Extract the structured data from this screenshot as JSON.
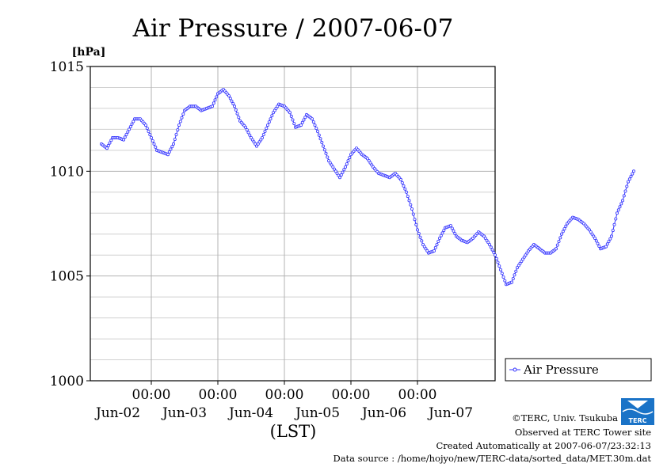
{
  "chart_data": {
    "type": "line",
    "title": "Air Pressure / 2007-06-07",
    "ylabel": "[hPa]",
    "xlabel": "(LST)",
    "ylim": [
      1000,
      1015
    ],
    "yticks": [
      "1015",
      "1010",
      "1005",
      "1000"
    ],
    "xtick_time": "00:00",
    "categories": [
      "Jun-02",
      "Jun-03",
      "Jun-04",
      "Jun-05",
      "Jun-06",
      "Jun-07"
    ],
    "x_range_hours": [
      0,
      144
    ],
    "grid": true,
    "legend": "right",
    "series": [
      {
        "name": "Air Pressure",
        "color": "#3333ff",
        "points": [
          [
            0,
            1011.3
          ],
          [
            2,
            1011.1
          ],
          [
            4,
            1011.6
          ],
          [
            6,
            1011.6
          ],
          [
            8,
            1011.5
          ],
          [
            10,
            1012.0
          ],
          [
            12,
            1012.5
          ],
          [
            14,
            1012.5
          ],
          [
            16,
            1012.2
          ],
          [
            18,
            1011.6
          ],
          [
            20,
            1011.0
          ],
          [
            22,
            1010.9
          ],
          [
            24,
            1010.8
          ],
          [
            26,
            1011.3
          ],
          [
            28,
            1012.2
          ],
          [
            30,
            1012.9
          ],
          [
            32,
            1013.1
          ],
          [
            34,
            1013.1
          ],
          [
            36,
            1012.9
          ],
          [
            38,
            1013.0
          ],
          [
            40,
            1013.1
          ],
          [
            42,
            1013.7
          ],
          [
            44,
            1013.9
          ],
          [
            46,
            1013.6
          ],
          [
            48,
            1013.1
          ],
          [
            50,
            1012.4
          ],
          [
            52,
            1012.1
          ],
          [
            54,
            1011.6
          ],
          [
            56,
            1011.2
          ],
          [
            58,
            1011.6
          ],
          [
            60,
            1012.2
          ],
          [
            62,
            1012.8
          ],
          [
            64,
            1013.2
          ],
          [
            66,
            1013.1
          ],
          [
            68,
            1012.8
          ],
          [
            70,
            1012.1
          ],
          [
            72,
            1012.2
          ],
          [
            74,
            1012.7
          ],
          [
            76,
            1012.5
          ],
          [
            78,
            1011.9
          ],
          [
            80,
            1011.2
          ],
          [
            82,
            1010.5
          ],
          [
            84,
            1010.1
          ],
          [
            86,
            1009.7
          ],
          [
            88,
            1010.2
          ],
          [
            90,
            1010.8
          ],
          [
            92,
            1011.1
          ],
          [
            94,
            1010.8
          ],
          [
            96,
            1010.6
          ],
          [
            98,
            1010.2
          ],
          [
            100,
            1009.9
          ],
          [
            102,
            1009.8
          ],
          [
            104,
            1009.7
          ],
          [
            106,
            1009.9
          ],
          [
            108,
            1009.6
          ],
          [
            110,
            1009.0
          ],
          [
            112,
            1008.2
          ],
          [
            114,
            1007.2
          ],
          [
            116,
            1006.5
          ],
          [
            118,
            1006.1
          ],
          [
            120,
            1006.2
          ],
          [
            122,
            1006.8
          ],
          [
            124,
            1007.3
          ],
          [
            126,
            1007.4
          ],
          [
            128,
            1006.9
          ],
          [
            130,
            1006.7
          ],
          [
            132,
            1006.6
          ],
          [
            134,
            1006.8
          ],
          [
            136,
            1007.1
          ],
          [
            138,
            1006.9
          ],
          [
            140,
            1006.5
          ],
          [
            142,
            1006.0
          ],
          [
            144,
            1005.3
          ],
          [
            146,
            1004.6
          ],
          [
            148,
            1004.7
          ],
          [
            150,
            1005.4
          ],
          [
            152,
            1005.8
          ],
          [
            154,
            1006.2
          ],
          [
            156,
            1006.5
          ],
          [
            158,
            1006.3
          ],
          [
            160,
            1006.1
          ],
          [
            162,
            1006.1
          ],
          [
            164,
            1006.3
          ],
          [
            166,
            1007.0
          ],
          [
            168,
            1007.5
          ],
          [
            170,
            1007.8
          ],
          [
            172,
            1007.7
          ],
          [
            174,
            1007.5
          ],
          [
            176,
            1007.2
          ],
          [
            178,
            1006.8
          ],
          [
            180,
            1006.3
          ],
          [
            182,
            1006.4
          ],
          [
            184,
            1006.9
          ],
          [
            186,
            1008.0
          ],
          [
            188,
            1008.6
          ],
          [
            190,
            1009.5
          ],
          [
            192,
            1010.0
          ]
        ]
      }
    ]
  },
  "credits": {
    "copyright": "©TERC, Univ. Tsukuba",
    "observed": "Observed at TERC Tower site",
    "created": "Created Automatically at 2007-06-07/23:32:13",
    "source": "Data source : /home/hojyo/new/TERC-data/sorted_data/MET.30m.dat",
    "logo_text": "TERC"
  }
}
